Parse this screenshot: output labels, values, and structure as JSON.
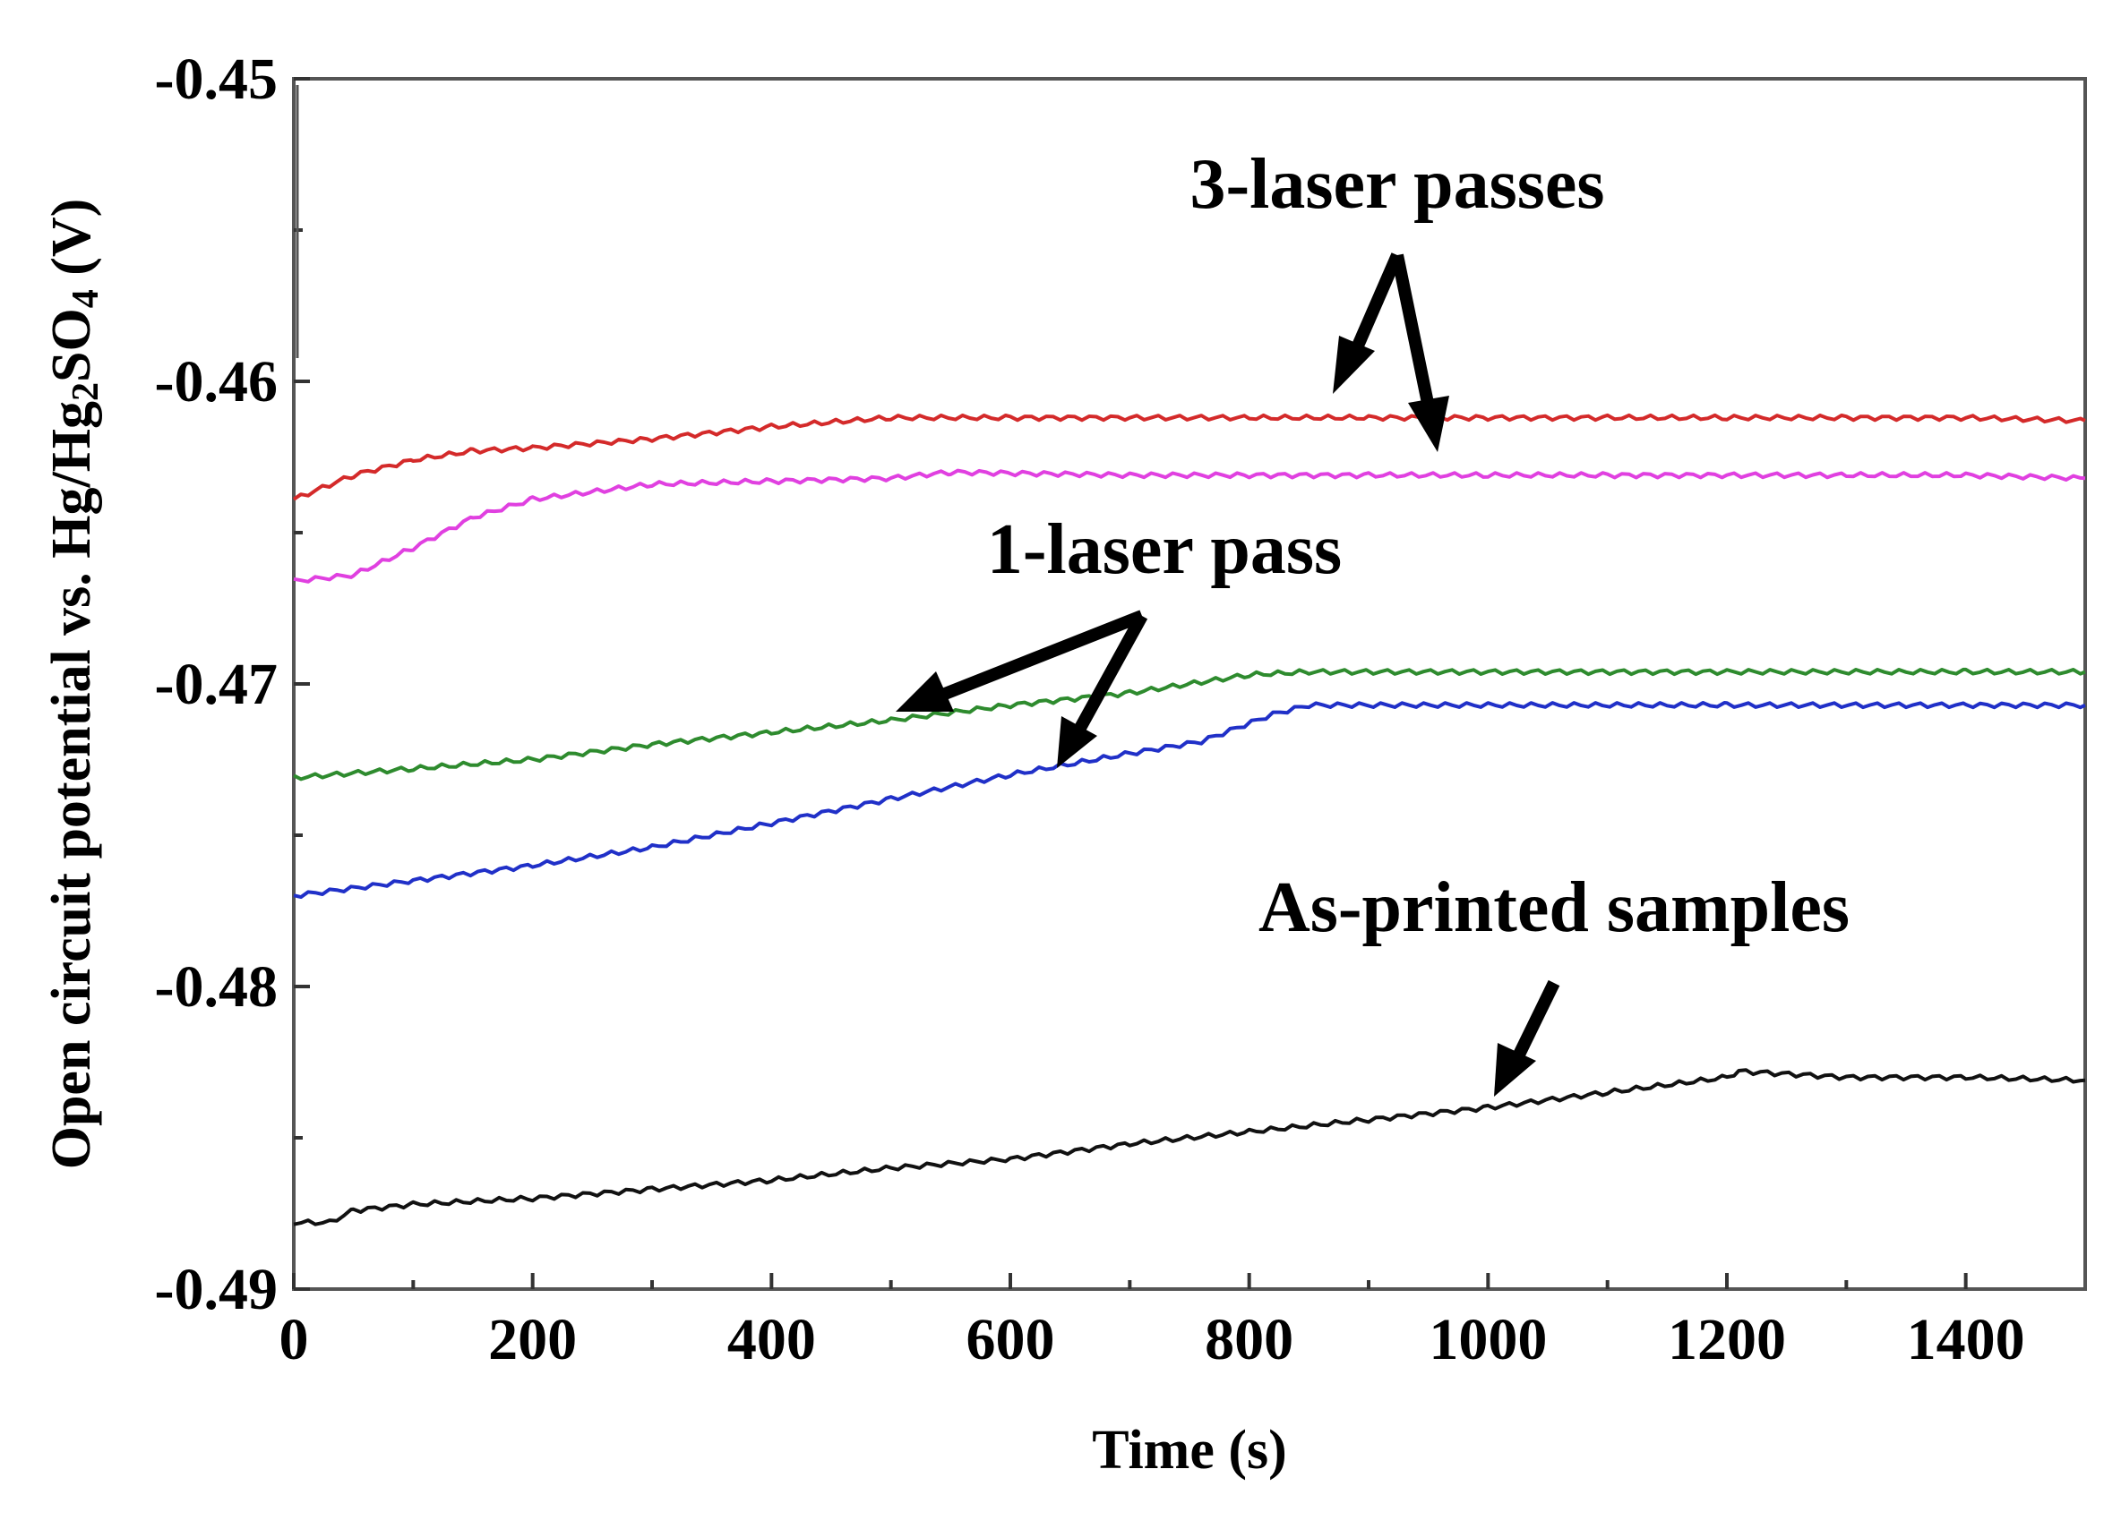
{
  "chart_data": {
    "type": "line",
    "title": "",
    "xlabel": "Time (s)",
    "ylabel_parts": {
      "prefix": "Open circuit potential  vs. Hg/Hg",
      "sub1": "2",
      "middle": "SO",
      "sub2": "4",
      "suffix": " (V)"
    },
    "xlim": [
      0,
      1500
    ],
    "ylim": [
      -0.49,
      -0.45
    ],
    "x_ticks": [
      0,
      200,
      400,
      600,
      800,
      1000,
      1200,
      1400
    ],
    "x_tick_labels": [
      "0",
      "200",
      "400",
      "600",
      "800",
      "1000",
      "1200",
      "1400"
    ],
    "y_ticks": [
      -0.45,
      -0.46,
      -0.47,
      -0.48,
      -0.49
    ],
    "y_tick_labels": [
      "-0.45",
      "-0.46",
      "-0.47",
      "-0.48",
      "-0.49"
    ],
    "grid": false,
    "series": [
      {
        "name": "3-laser passes (a)",
        "color": "#d42a2a",
        "points": [
          [
            0,
            -0.4639
          ],
          [
            50,
            -0.4631
          ],
          [
            100,
            -0.4626
          ],
          [
            150,
            -0.4623
          ],
          [
            200,
            -0.4622
          ],
          [
            300,
            -0.4619
          ],
          [
            400,
            -0.4615
          ],
          [
            500,
            -0.4612
          ],
          [
            600,
            -0.4612
          ],
          [
            700,
            -0.4612
          ],
          [
            800,
            -0.4612
          ],
          [
            900,
            -0.4612
          ],
          [
            1000,
            -0.4612
          ],
          [
            1100,
            -0.4612
          ],
          [
            1200,
            -0.4612
          ],
          [
            1300,
            -0.4612
          ],
          [
            1400,
            -0.4612
          ],
          [
            1500,
            -0.4613
          ]
        ]
      },
      {
        "name": "3-laser passes (b)",
        "color": "#e040e0",
        "points": [
          [
            0,
            -0.4666
          ],
          [
            50,
            -0.4664
          ],
          [
            100,
            -0.4655
          ],
          [
            150,
            -0.4645
          ],
          [
            200,
            -0.4639
          ],
          [
            300,
            -0.4634
          ],
          [
            400,
            -0.4633
          ],
          [
            500,
            -0.4632
          ],
          [
            550,
            -0.463
          ],
          [
            700,
            -0.4631
          ],
          [
            800,
            -0.4631
          ],
          [
            900,
            -0.4631
          ],
          [
            1000,
            -0.4631
          ],
          [
            1100,
            -0.4631
          ],
          [
            1200,
            -0.4631
          ],
          [
            1300,
            -0.4631
          ],
          [
            1400,
            -0.4631
          ],
          [
            1500,
            -0.4632
          ]
        ]
      },
      {
        "name": "1-laser pass (a)",
        "color": "#2e8b2e",
        "points": [
          [
            0,
            -0.4731
          ],
          [
            100,
            -0.4728
          ],
          [
            200,
            -0.4725
          ],
          [
            300,
            -0.472
          ],
          [
            400,
            -0.4716
          ],
          [
            500,
            -0.4712
          ],
          [
            600,
            -0.4707
          ],
          [
            700,
            -0.4703
          ],
          [
            800,
            -0.4697
          ],
          [
            850,
            -0.4696
          ],
          [
            1000,
            -0.4696
          ],
          [
            1200,
            -0.4696
          ],
          [
            1400,
            -0.4696
          ],
          [
            1500,
            -0.4696
          ]
        ]
      },
      {
        "name": "1-laser pass (b)",
        "color": "#2030c8",
        "points": [
          [
            0,
            -0.477
          ],
          [
            100,
            -0.4765
          ],
          [
            200,
            -0.476
          ],
          [
            300,
            -0.4754
          ],
          [
            400,
            -0.4746
          ],
          [
            500,
            -0.4738
          ],
          [
            600,
            -0.473
          ],
          [
            700,
            -0.4723
          ],
          [
            760,
            -0.4719
          ],
          [
            820,
            -0.471
          ],
          [
            850,
            -0.4707
          ],
          [
            1000,
            -0.4707
          ],
          [
            1200,
            -0.4707
          ],
          [
            1400,
            -0.4707
          ],
          [
            1500,
            -0.4707
          ]
        ]
      },
      {
        "name": "As-printed samples",
        "color": "#111111",
        "points": [
          [
            0,
            -0.4878
          ],
          [
            30,
            -0.4878
          ],
          [
            50,
            -0.4874
          ],
          [
            100,
            -0.4872
          ],
          [
            200,
            -0.487
          ],
          [
            300,
            -0.4867
          ],
          [
            400,
            -0.4864
          ],
          [
            500,
            -0.486
          ],
          [
            600,
            -0.4857
          ],
          [
            700,
            -0.4852
          ],
          [
            800,
            -0.4848
          ],
          [
            900,
            -0.4844
          ],
          [
            1000,
            -0.484
          ],
          [
            1100,
            -0.4835
          ],
          [
            1200,
            -0.483
          ],
          [
            1210,
            -0.4828
          ],
          [
            1300,
            -0.483
          ],
          [
            1400,
            -0.483
          ],
          [
            1500,
            -0.4831
          ]
        ]
      }
    ],
    "annotations": [
      {
        "label": "3-laser passes"
      },
      {
        "label": "1-laser pass"
      },
      {
        "label": "As-printed samples"
      }
    ]
  }
}
